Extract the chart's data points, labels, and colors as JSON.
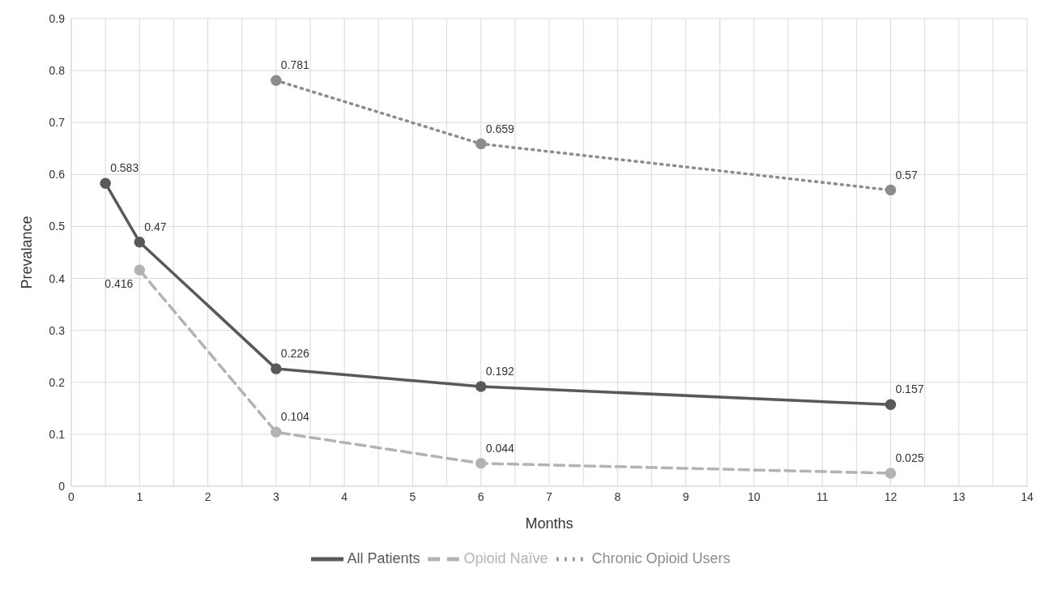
{
  "chart_data": {
    "type": "line",
    "xlabel": "Months",
    "ylabel": "Prevalance",
    "xlim": [
      0,
      14
    ],
    "xticks": [
      0,
      {
        "value": 0.5,
        "label": null
      },
      1,
      {
        "value": 1.5,
        "label": null
      },
      2,
      {
        "value": 2.5,
        "label": null
      },
      3,
      {
        "value": 3.5,
        "label": null
      },
      4,
      {
        "value": 4.5,
        "label": null
      },
      5,
      {
        "value": 5.5,
        "label": null
      },
      6,
      {
        "value": 6.5,
        "label": null
      },
      7,
      {
        "value": 7.5,
        "label": null
      },
      8,
      {
        "value": 8.5,
        "label": null
      },
      9,
      {
        "value": 9.5,
        "label": null
      },
      10,
      {
        "value": 10.5,
        "label": null
      },
      11,
      {
        "value": 11.5,
        "label": null
      },
      12,
      {
        "value": 12.5,
        "label": null
      },
      13,
      {
        "value": 13.5,
        "label": null
      },
      14
    ],
    "ylim": [
      0,
      0.9
    ],
    "yticks": [
      0,
      0.1,
      0.2,
      0.3,
      0.4,
      0.5,
      0.6,
      0.7,
      0.8,
      0.9
    ],
    "grid": true,
    "legend": "bottom",
    "marker": "circle",
    "data_labels": true,
    "series": [
      {
        "name": "All Patients",
        "color": "#595959",
        "line_style": "solid",
        "x": [
          0.5,
          1,
          3,
          6,
          12
        ],
        "values": [
          0.583,
          0.47,
          0.226,
          0.192,
          0.157
        ]
      },
      {
        "name": "Opioid Naïve",
        "color": "#b3b3b3",
        "line_style": "dashed",
        "x": [
          1,
          3,
          6,
          12
        ],
        "values": [
          0.416,
          0.104,
          0.044,
          0.025
        ]
      },
      {
        "name": "Chronic Opioid Users",
        "color": "#8c8c8c",
        "line_style": "dotted",
        "x": [
          3,
          6,
          12
        ],
        "values": [
          0.781,
          0.659,
          0.57
        ]
      }
    ]
  }
}
